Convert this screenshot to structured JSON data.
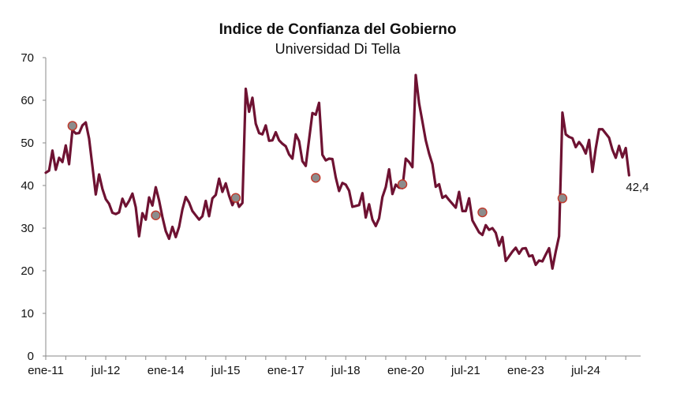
{
  "chart_data": {
    "type": "line",
    "title": "Indice de Confianza del Gobierno",
    "subtitle": "Universidad Di Tella",
    "xlabel": "",
    "ylabel": "",
    "ylim": [
      0,
      70
    ],
    "yticks": [
      0,
      10,
      20,
      30,
      40,
      50,
      60,
      70
    ],
    "xtick_labels": [
      "ene-11",
      "jul-12",
      "ene-14",
      "jul-15",
      "ene-17",
      "jul-18",
      "ene-20",
      "jul-21",
      "ene-23",
      "jul-24"
    ],
    "grid": false,
    "legend": "none",
    "end_label": "42,4",
    "colors": {
      "line": "#6e1232",
      "marker_fill": "#8c8c8c",
      "marker_edge": "#c0392b",
      "axis": "#8a8a8a"
    },
    "start": "ene-11",
    "frequency": "monthly",
    "series": [
      {
        "values": [
          43.0,
          43.5,
          48.2,
          43.7,
          46.5,
          45.5,
          49.4,
          45.0,
          53.0,
          52.2,
          52.3,
          54.1,
          54.8,
          51.0,
          44.5,
          37.9,
          42.6,
          39.2,
          36.8,
          35.7,
          33.6,
          33.3,
          33.7,
          36.9,
          35.1,
          36.4,
          38.1,
          34.9,
          28.1,
          33.5,
          32.0,
          37.2,
          35.3,
          39.6,
          36.5,
          32.6,
          29.3,
          27.5,
          30.3,
          27.9,
          30.3,
          34.4,
          37.3,
          36.0,
          34.0,
          33.0,
          32.0,
          32.8,
          36.4,
          32.8,
          37.0,
          37.8,
          41.6,
          38.5,
          40.5,
          37.6,
          35.4,
          37.2,
          35.0,
          35.9,
          62.7,
          57.3,
          60.6,
          54.5,
          52.3,
          52.0,
          54.1,
          50.5,
          50.6,
          52.5,
          50.6,
          49.8,
          49.2,
          47.3,
          46.3,
          52.0,
          50.4,
          45.7,
          44.6,
          50.8,
          57.0,
          56.6,
          59.4,
          47.2,
          45.9,
          46.3,
          46.2,
          41.9,
          38.7,
          40.6,
          40.2,
          38.8,
          35.0,
          35.2,
          35.4,
          38.2,
          32.5,
          35.6,
          32.0,
          30.5,
          32.3,
          37.3,
          39.6,
          43.8,
          38.0,
          40.2,
          39.5,
          39.4,
          46.3,
          45.5,
          44.3,
          65.9,
          59.3,
          55.0,
          50.6,
          47.5,
          45.0,
          39.7,
          40.3,
          37.1,
          37.6,
          36.6,
          35.7,
          34.8,
          38.5,
          34.0,
          34.0,
          37.0,
          31.8,
          30.4,
          29.0,
          28.4,
          30.7,
          29.6,
          30.0,
          28.9,
          25.9,
          27.9,
          22.3,
          23.4,
          24.5,
          25.4,
          24.0,
          25.2,
          25.3,
          23.4,
          23.6,
          21.4,
          22.4,
          22.2,
          23.8,
          25.3,
          20.5,
          24.5,
          28.1,
          57.1,
          52.0,
          51.4,
          51.1,
          49.0,
          50.2,
          49.2,
          47.5,
          50.7,
          43.2,
          48.7,
          53.2,
          53.2,
          52.2,
          51.2,
          48.4,
          46.5,
          49.3,
          46.6,
          48.8,
          42.4
        ]
      }
    ],
    "markers": [
      {
        "x_index": 8,
        "y": 54.0
      },
      {
        "x_index": 33,
        "y": 33.0
      },
      {
        "x_index": 57,
        "y": 37.1
      },
      {
        "x_index": 81,
        "y": 41.8
      },
      {
        "x_index": 107,
        "y": 40.3
      },
      {
        "x_index": 131,
        "y": 33.7
      },
      {
        "x_index": 155,
        "y": 37.0
      }
    ]
  }
}
